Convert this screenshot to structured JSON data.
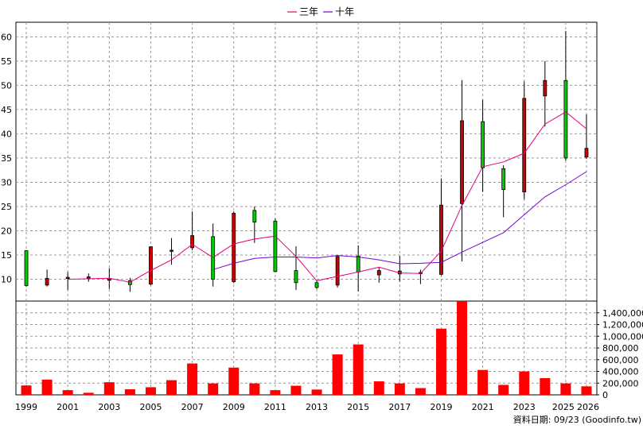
{
  "chart_data": {
    "type": "candlestick-with-volume",
    "legend": [
      {
        "name": "三年",
        "color": "#e6007e"
      },
      {
        "name": "十年",
        "color": "#7b00d6"
      }
    ],
    "x_tick_labels": [
      "1999",
      "2001",
      "2003",
      "2005",
      "2007",
      "2009",
      "2011",
      "2013",
      "2015",
      "2017",
      "2019",
      "2021",
      "2023",
      "2025",
      "2026"
    ],
    "price_axis": {
      "ticks": [
        10,
        15,
        20,
        25,
        30,
        35,
        40,
        45,
        50,
        55,
        60
      ],
      "range": [
        5.5,
        63
      ]
    },
    "volume_axis": {
      "ticks": [
        "0",
        "200,000",
        "400,000",
        "600,000",
        "800,000",
        "1,000,000",
        "1,200,000",
        "1,400,000"
      ],
      "range": [
        0,
        1600000
      ]
    },
    "up_color": "#00cc00",
    "down_color": "#cc0000",
    "volume_color": "#ff0000",
    "footer": "資料日期: 09/23  (Goodinfo.tw)",
    "candles": [
      {
        "year": 1999,
        "open": 8.7,
        "close": 15.9,
        "high": 16.0,
        "low": 8.5
      },
      {
        "year": 2000,
        "open": 10.2,
        "close": 8.8,
        "high": 12.0,
        "low": 8.5
      },
      {
        "year": 2001,
        "open": 10.4,
        "close": 10.2,
        "high": 11.5,
        "low": 7.8
      },
      {
        "year": 2002,
        "open": 10.5,
        "close": 10.2,
        "high": 11.2,
        "low": 9.5
      },
      {
        "year": 2003,
        "open": 10.1,
        "close": 9.8,
        "high": 12.3,
        "low": 8.0
      },
      {
        "year": 2004,
        "open": 8.9,
        "close": 9.7,
        "high": 10.3,
        "low": 7.4
      },
      {
        "year": 2005,
        "open": 16.7,
        "close": 9.0,
        "high": 16.8,
        "low": 8.8
      },
      {
        "year": 2006,
        "open": 16.0,
        "close": 15.8,
        "high": 18.5,
        "low": 13.0
      },
      {
        "year": 2007,
        "open": 19.0,
        "close": 16.5,
        "high": 24.0,
        "low": 16.0
      },
      {
        "year": 2008,
        "open": 10.0,
        "close": 18.8,
        "high": 21.5,
        "low": 8.5
      },
      {
        "year": 2009,
        "open": 23.6,
        "close": 9.5,
        "high": 24.0,
        "low": 9.2
      },
      {
        "year": 2010,
        "open": 21.8,
        "close": 24.2,
        "high": 25.0,
        "low": 17.5
      },
      {
        "year": 2011,
        "open": 11.6,
        "close": 22.0,
        "high": 22.5,
        "low": 11.5
      },
      {
        "year": 2012,
        "open": 9.3,
        "close": 11.8,
        "high": 16.8,
        "low": 7.8
      },
      {
        "year": 2013,
        "open": 8.3,
        "close": 9.3,
        "high": 9.8,
        "low": 8.0
      },
      {
        "year": 2014,
        "open": 14.7,
        "close": 8.8,
        "high": 15.0,
        "low": 8.3
      },
      {
        "year": 2015,
        "open": 11.5,
        "close": 14.8,
        "high": 17.0,
        "low": 7.5
      },
      {
        "year": 2016,
        "open": 11.8,
        "close": 10.9,
        "high": 12.5,
        "low": 9.3
      },
      {
        "year": 2017,
        "open": 11.7,
        "close": 11.1,
        "high": 14.8,
        "low": 9.5
      },
      {
        "year": 2018,
        "open": 11.4,
        "close": 11.3,
        "high": 12.0,
        "low": 9.0
      },
      {
        "year": 2019,
        "open": 25.3,
        "close": 11.0,
        "high": 30.8,
        "low": 10.8
      },
      {
        "year": 2020,
        "open": 42.7,
        "close": 25.6,
        "high": 51.1,
        "low": 13.7
      },
      {
        "year": 2021,
        "open": 33.0,
        "close": 42.5,
        "high": 47.0,
        "low": 28.0
      },
      {
        "year": 2022,
        "open": 28.5,
        "close": 32.8,
        "high": 33.5,
        "low": 22.8
      },
      {
        "year": 2023,
        "open": 47.3,
        "close": 28.0,
        "high": 50.8,
        "low": 26.5
      },
      {
        "year": 2024,
        "open": 51.0,
        "close": 47.8,
        "high": 55.0,
        "low": 41.5
      },
      {
        "year": 2025,
        "open": 35.0,
        "close": 51.0,
        "high": 61.2,
        "low": 34.5
      },
      {
        "year": 2026,
        "open": 37.0,
        "close": 35.2,
        "high": 44.0,
        "low": 34.8
      }
    ],
    "ma_three_year": [
      {
        "year": 2001,
        "value": 10.0
      },
      {
        "year": 2003,
        "value": 10.2
      },
      {
        "year": 2004,
        "value": 9.4
      },
      {
        "year": 2005,
        "value": 11.8
      },
      {
        "year": 2006,
        "value": 14.0
      },
      {
        "year": 2007,
        "value": 17.2
      },
      {
        "year": 2008,
        "value": 14.5
      },
      {
        "year": 2009,
        "value": 17.3
      },
      {
        "year": 2010,
        "value": 18.3
      },
      {
        "year": 2011,
        "value": 18.9
      },
      {
        "year": 2012,
        "value": 14.7
      },
      {
        "year": 2013,
        "value": 9.7
      },
      {
        "year": 2014,
        "value": 10.6
      },
      {
        "year": 2015,
        "value": 11.5
      },
      {
        "year": 2016,
        "value": 12.5
      },
      {
        "year": 2017,
        "value": 11.3
      },
      {
        "year": 2018,
        "value": 11.2
      },
      {
        "year": 2019,
        "value": 15.8
      },
      {
        "year": 2020,
        "value": 25.2
      },
      {
        "year": 2021,
        "value": 33.2
      },
      {
        "year": 2022,
        "value": 34.2
      },
      {
        "year": 2023,
        "value": 36.0
      },
      {
        "year": 2024,
        "value": 42.0
      },
      {
        "year": 2025,
        "value": 44.5
      },
      {
        "year": 2026,
        "value": 41.0
      }
    ],
    "ma_ten_year": [
      {
        "year": 2008,
        "value": 12.0
      },
      {
        "year": 2009,
        "value": 13.3
      },
      {
        "year": 2010,
        "value": 14.3
      },
      {
        "year": 2011,
        "value": 14.6
      },
      {
        "year": 2012,
        "value": 14.6
      },
      {
        "year": 2013,
        "value": 14.4
      },
      {
        "year": 2014,
        "value": 14.9
      },
      {
        "year": 2015,
        "value": 14.6
      },
      {
        "year": 2016,
        "value": 14.0
      },
      {
        "year": 2017,
        "value": 13.2
      },
      {
        "year": 2018,
        "value": 13.3
      },
      {
        "year": 2019,
        "value": 13.5
      },
      {
        "year": 2020,
        "value": 15.6
      },
      {
        "year": 2021,
        "value": 17.6
      },
      {
        "year": 2022,
        "value": 19.6
      },
      {
        "year": 2023,
        "value": 23.3
      },
      {
        "year": 2024,
        "value": 27.0
      },
      {
        "year": 2025,
        "value": 29.5
      },
      {
        "year": 2026,
        "value": 32.2
      }
    ],
    "volumes": [
      {
        "year": 1999,
        "value": 160000
      },
      {
        "year": 2000,
        "value": 260000
      },
      {
        "year": 2001,
        "value": 80000
      },
      {
        "year": 2002,
        "value": 35000
      },
      {
        "year": 2003,
        "value": 215000
      },
      {
        "year": 2004,
        "value": 95000
      },
      {
        "year": 2005,
        "value": 130000
      },
      {
        "year": 2006,
        "value": 250000
      },
      {
        "year": 2007,
        "value": 535000
      },
      {
        "year": 2008,
        "value": 195000
      },
      {
        "year": 2009,
        "value": 465000
      },
      {
        "year": 2010,
        "value": 195000
      },
      {
        "year": 2011,
        "value": 80000
      },
      {
        "year": 2012,
        "value": 155000
      },
      {
        "year": 2013,
        "value": 90000
      },
      {
        "year": 2014,
        "value": 690000
      },
      {
        "year": 2015,
        "value": 860000
      },
      {
        "year": 2016,
        "value": 230000
      },
      {
        "year": 2017,
        "value": 195000
      },
      {
        "year": 2018,
        "value": 115000
      },
      {
        "year": 2019,
        "value": 1130000
      },
      {
        "year": 2020,
        "value": 1600000
      },
      {
        "year": 2021,
        "value": 425000
      },
      {
        "year": 2022,
        "value": 170000
      },
      {
        "year": 2023,
        "value": 400000
      },
      {
        "year": 2024,
        "value": 285000
      },
      {
        "year": 2025,
        "value": 195000
      },
      {
        "year": 2026,
        "value": 145000
      }
    ]
  }
}
